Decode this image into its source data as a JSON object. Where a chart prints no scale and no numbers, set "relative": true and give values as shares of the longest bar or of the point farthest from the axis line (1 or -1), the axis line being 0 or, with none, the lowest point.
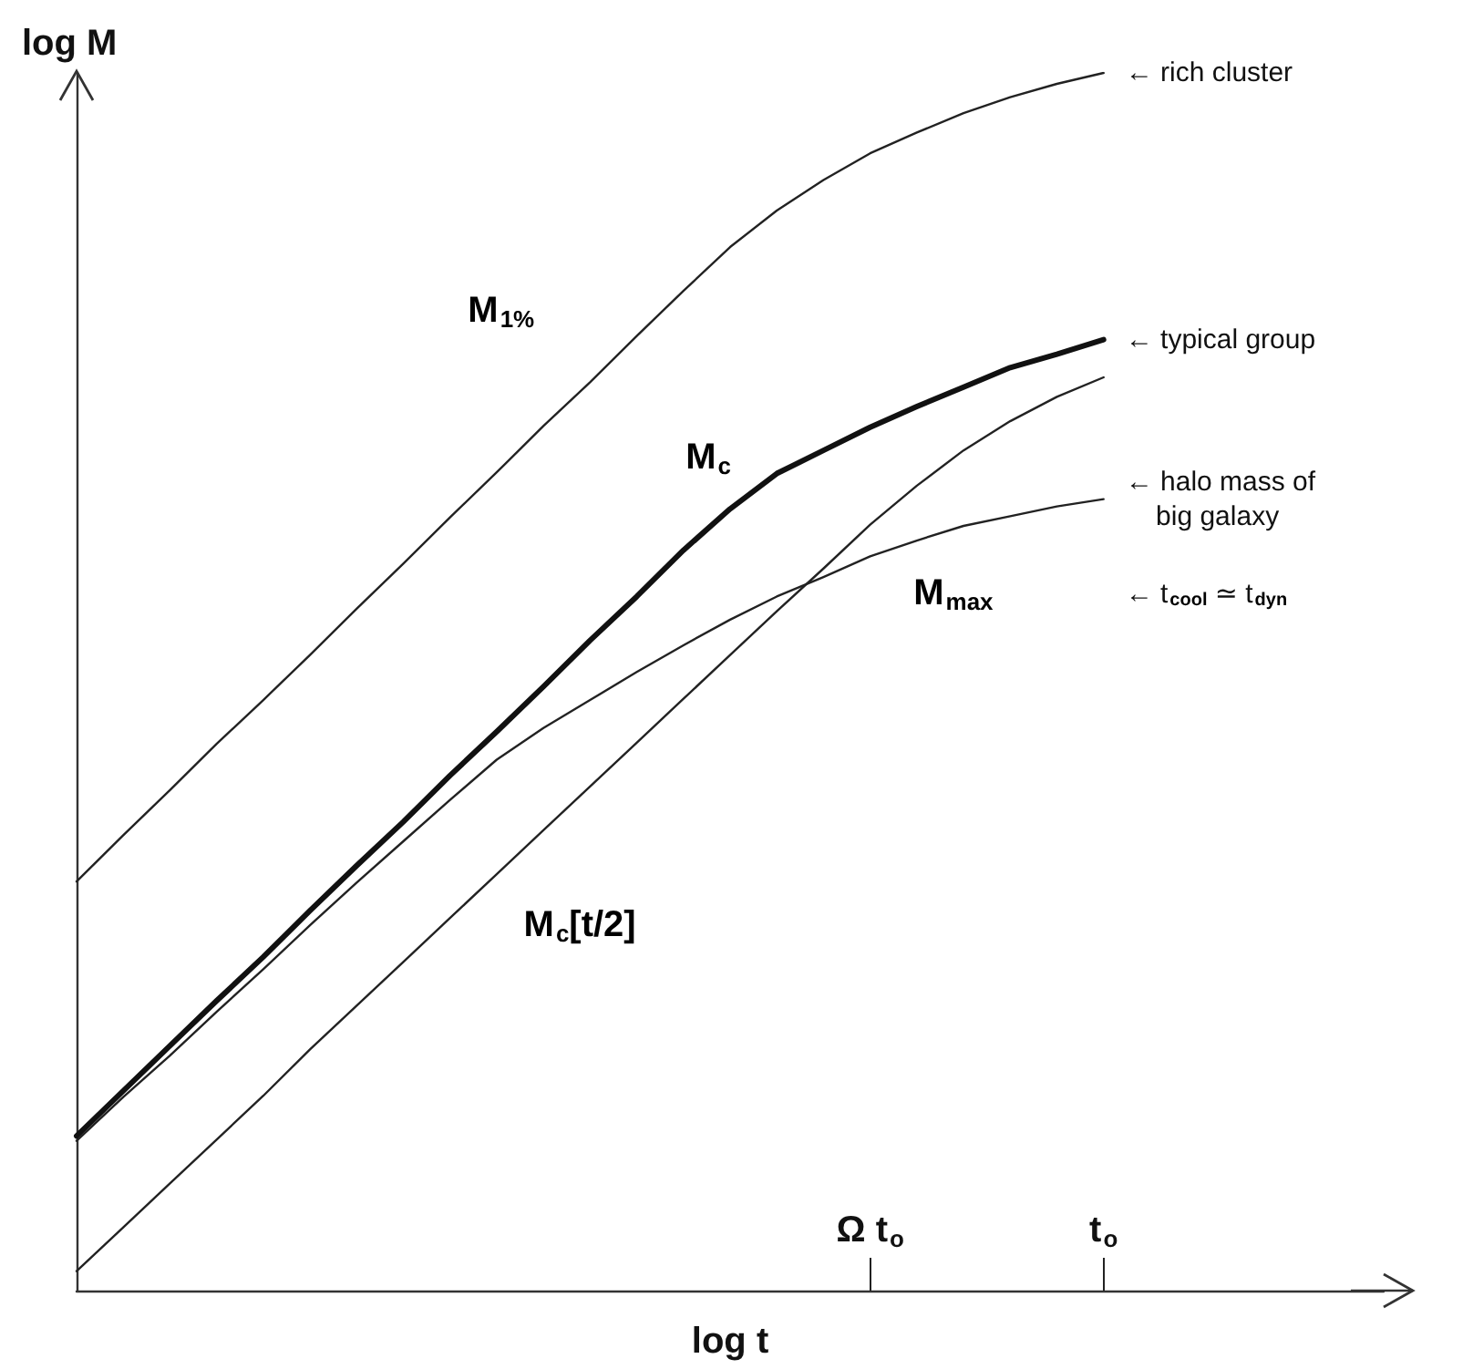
{
  "chart_data": {
    "type": "line",
    "relative": true,
    "xlabel": "log t",
    "ylabel": "log M",
    "tick_labels": "x",
    "grid": false,
    "legend": false,
    "marker": "none",
    "line_style": "solid",
    "categories": [
      null,
      null,
      null,
      null,
      null,
      null,
      null,
      null,
      null,
      null,
      null,
      null,
      null,
      null,
      null,
      null,
      null,
      "Ω t$_{o}$",
      null,
      null,
      null,
      null,
      "t$_{o}$",
      null,
      null,
      null,
      null,
      null,
      null
    ],
    "series": [
      {
        "name": "M$_{1%}$",
        "color": "#222222",
        "values": [
          0.336,
          0.374,
          0.411,
          0.449,
          0.485,
          0.522,
          0.56,
          0.597,
          0.635,
          0.672,
          0.71,
          0.746,
          0.784,
          0.821,
          0.857,
          0.887,
          0.912,
          0.934,
          0.951,
          0.967,
          0.98,
          0.991,
          1.0,
          null,
          null,
          null,
          null,
          null,
          null
        ]
      },
      {
        "name": "M$_{c}$",
        "color": "#111111",
        "values": [
          0.127,
          0.164,
          0.201,
          0.238,
          0.274,
          0.312,
          0.349,
          0.385,
          0.423,
          0.459,
          0.496,
          0.534,
          0.57,
          0.608,
          0.642,
          0.671,
          0.69,
          0.709,
          0.726,
          0.742,
          0.758,
          0.769,
          0.781,
          null,
          null,
          null,
          null,
          null,
          null
        ]
      },
      {
        "name": "M$_{max}$",
        "color": "#222222",
        "values": [
          0.123,
          0.159,
          0.193,
          0.229,
          0.264,
          0.3,
          0.335,
          0.369,
          0.403,
          0.436,
          0.462,
          0.485,
          0.508,
          0.53,
          0.551,
          0.57,
          0.586,
          0.603,
          0.616,
          0.628,
          0.636,
          0.644,
          0.65,
          null,
          null,
          null,
          null,
          null,
          null
        ]
      },
      {
        "name": "M$_{c}$[t/2]",
        "color": "#222222",
        "values": [
          0.016,
          0.052,
          0.088,
          0.124,
          0.16,
          0.198,
          0.234,
          0.27,
          0.306,
          0.342,
          0.378,
          0.414,
          0.45,
          0.486,
          0.522,
          0.558,
          0.593,
          0.629,
          0.661,
          0.69,
          0.714,
          0.734,
          0.75,
          null,
          null,
          null,
          null,
          null,
          null
        ]
      }
    ],
    "annotations": [
      {
        "text": "← rich cluster",
        "x": "t$_{o}$",
        "y": 1.0
      },
      {
        "text": "← typical group",
        "x": "t$_{o}$",
        "y": 0.781
      },
      {
        "text": "← halo mass of\n    big galaxy",
        "x": "t$_{o}$",
        "y": 0.65
      },
      "← t$_{cool}$ ≃ t$_{dyn}$"
    ]
  }
}
